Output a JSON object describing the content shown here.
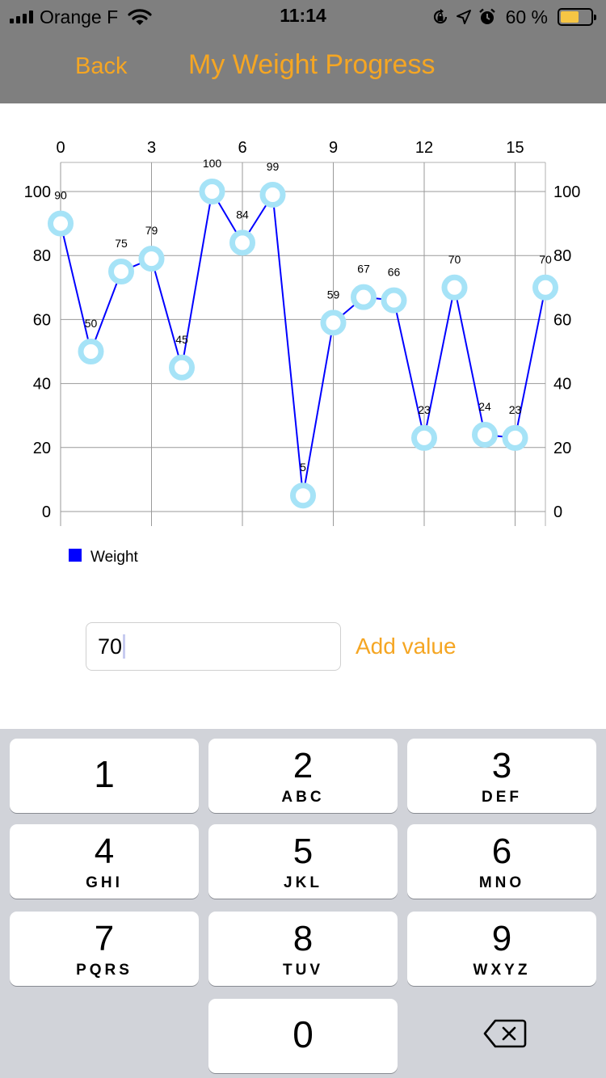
{
  "status_bar": {
    "carrier": "Orange F",
    "time": "11:14",
    "battery_percent": "60 %",
    "battery_level": 0.6
  },
  "nav": {
    "back_label": "Back",
    "title": "My Weight Progress"
  },
  "chart_data": {
    "type": "line",
    "x": [
      0,
      1,
      2,
      3,
      4,
      5,
      6,
      7,
      8,
      9,
      10,
      11,
      12,
      13,
      14,
      15,
      16
    ],
    "series": [
      {
        "name": "Weight",
        "color": "#0000ff",
        "marker_color": "#a6e3f7",
        "values": [
          90,
          50,
          75,
          79,
          45,
          100,
          84,
          99,
          5,
          59,
          67,
          66,
          23,
          70,
          24,
          23,
          70
        ]
      }
    ],
    "x_ticks": [
      0,
      3,
      6,
      9,
      12,
      15
    ],
    "y_ticks": [
      0,
      20,
      40,
      60,
      80,
      100
    ],
    "xlim": [
      0,
      16
    ],
    "ylim": [
      0,
      100
    ],
    "x_axis_position": "top",
    "y_axis_position": "left-and-right",
    "grid": true,
    "data_labels": true,
    "legend": "bottom-left"
  },
  "input": {
    "value": "70"
  },
  "add_button_label": "Add value",
  "keyboard": {
    "keys": [
      {
        "digit": "1",
        "letters": ""
      },
      {
        "digit": "2",
        "letters": "ABC"
      },
      {
        "digit": "3",
        "letters": "DEF"
      },
      {
        "digit": "4",
        "letters": "GHI"
      },
      {
        "digit": "5",
        "letters": "JKL"
      },
      {
        "digit": "6",
        "letters": "MNO"
      },
      {
        "digit": "7",
        "letters": "PQRS"
      },
      {
        "digit": "8",
        "letters": "TUV"
      },
      {
        "digit": "9",
        "letters": "WXYZ"
      },
      {
        "digit": "0",
        "letters": ""
      }
    ]
  }
}
